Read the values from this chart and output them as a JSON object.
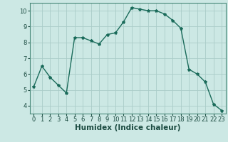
{
  "x": [
    0,
    1,
    2,
    3,
    4,
    5,
    6,
    7,
    8,
    9,
    10,
    11,
    12,
    13,
    14,
    15,
    16,
    17,
    18,
    19,
    20,
    21,
    22,
    23
  ],
  "y": [
    5.2,
    6.5,
    5.8,
    5.3,
    4.8,
    8.3,
    8.3,
    8.1,
    7.9,
    8.5,
    8.6,
    9.3,
    10.2,
    10.1,
    10.0,
    10.0,
    9.8,
    9.4,
    8.9,
    6.3,
    6.0,
    5.5,
    4.1,
    3.7
  ],
  "line_color": "#1a6b5a",
  "marker": "*",
  "marker_size": 3,
  "bg_color": "#cce8e4",
  "grid_color": "#aaccc8",
  "xlabel": "Humidex (Indice chaleur)",
  "xlim": [
    -0.5,
    23.5
  ],
  "ylim": [
    3.5,
    10.5
  ],
  "yticks": [
    4,
    5,
    6,
    7,
    8,
    9,
    10
  ],
  "xticks": [
    0,
    1,
    2,
    3,
    4,
    5,
    6,
    7,
    8,
    9,
    10,
    11,
    12,
    13,
    14,
    15,
    16,
    17,
    18,
    19,
    20,
    21,
    22,
    23
  ],
  "axis_fontsize": 6.5,
  "tick_fontsize": 6,
  "line_width": 1.0,
  "spine_color": "#4a8a7a",
  "tick_color": "#1a4a40",
  "xlabel_fontsize": 7.5,
  "xlabel_bold": true
}
